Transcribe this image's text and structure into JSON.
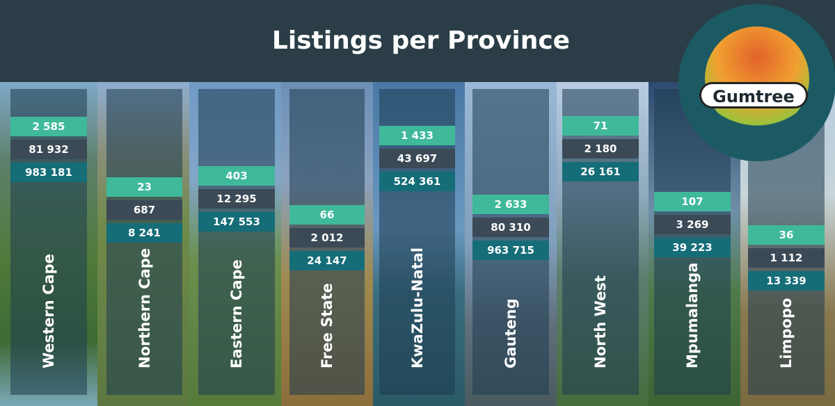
{
  "header": {
    "title": "Listings per Province"
  },
  "logo": {
    "label": "Gumtree"
  },
  "provinces": [
    {
      "name": "Western Cape",
      "values": [
        "2 585",
        "81 932",
        "983 181"
      ]
    },
    {
      "name": "Northern Cape",
      "values": [
        "23",
        "687",
        "8 241"
      ]
    },
    {
      "name": "Eastern Cape",
      "values": [
        "403",
        "12 295",
        "147 553"
      ]
    },
    {
      "name": "Free State",
      "values": [
        "66",
        "2 012",
        "24 147"
      ]
    },
    {
      "name": "KwaZulu-Natal",
      "values": [
        "1 433",
        "43 697",
        "524 361"
      ]
    },
    {
      "name": "Gauteng",
      "values": [
        "2 633",
        "80 310",
        "963 715"
      ]
    },
    {
      "name": "North West",
      "values": [
        "71",
        "2 180",
        "26 161"
      ]
    },
    {
      "name": "Mpumalanga",
      "values": [
        "107",
        "3 269",
        "39 223"
      ]
    },
    {
      "name": "Limpopo",
      "values": [
        "36",
        "1 112",
        "13 339"
      ]
    }
  ]
}
